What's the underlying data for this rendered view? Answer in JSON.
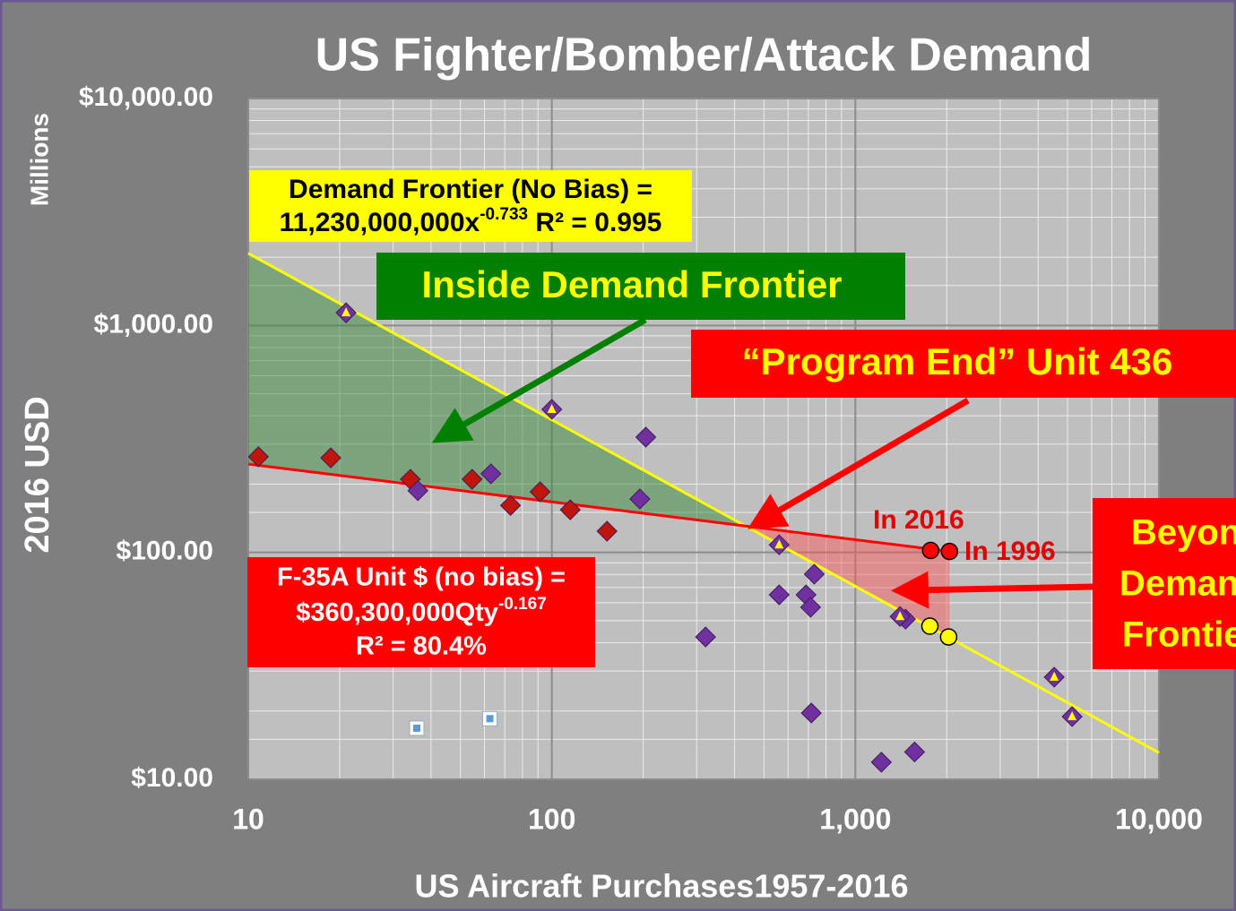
{
  "chart_data": {
    "type": "scatter",
    "title": "US Fighter/Bomber/Attack Demand",
    "y_label": "2016  USD",
    "y_unit": "Millions",
    "x_label": "US Aircraft Purchases1957-2016",
    "log_x": true,
    "log_y": true,
    "grid": true,
    "xlim": [
      10,
      10000
    ],
    "ylim": [
      10,
      10000
    ],
    "xticks": [
      10,
      100,
      {
        "value": 1000,
        "label": "1,000"
      },
      {
        "value": 10000,
        "label": "10,000"
      }
    ],
    "yticks": [
      {
        "value": 10,
        "label": "$10.00"
      },
      {
        "value": 100,
        "label": "$100.00"
      },
      {
        "value": 1000,
        "label": "$1,000.00"
      },
      {
        "value": 10000,
        "label": "$10,000.00"
      }
    ],
    "series": [
      {
        "color": "#c0150a",
        "marker": "diamond",
        "x": [
          10.8,
          18.7,
          34.2,
          54.6,
          73.1,
          91.5,
          115,
          152
        ],
        "values": [
          264,
          261,
          210,
          210,
          161,
          185,
          154,
          124
        ]
      },
      {
        "color": "#7030a0",
        "marker": "diamond",
        "x": [
          36.2,
          63.0,
          195,
          204,
          321,
          561,
          688,
          712,
          732,
          716,
          1218,
          1567,
          1463
        ],
        "values": [
          187,
          222,
          172,
          322,
          42.4,
          65.0,
          65.0,
          57.3,
          80.2,
          19.6,
          11.9,
          13.2,
          50.8
        ]
      },
      {
        "color": "#7030a0",
        "marker": "diamond-triangle",
        "x": [
          21.0,
          100,
          561,
          1403,
          4519,
          5177
        ],
        "values": [
          1138,
          427,
          108,
          52.2,
          28.2,
          18.9
        ]
      },
      {
        "color": "#5b9bd5",
        "marker": "square",
        "x": [
          35.9,
          62.5
        ],
        "values": [
          16.8,
          18.5
        ]
      },
      {
        "color": "#ff0000",
        "marker": "circle",
        "x": [
          1770,
          2042
        ],
        "values": [
          102,
          101
        ]
      },
      {
        "color": "#ffff00",
        "marker": "circle",
        "x": [
          1760,
          2029
        ],
        "values": [
          47.3,
          42.4
        ]
      }
    ],
    "lines": [
      {
        "color": "#ffff00",
        "x": [
          10,
          10000
        ],
        "values": [
          2078,
          13.1
        ]
      },
      {
        "color": "#ff0000",
        "x": [
          10,
          2042
        ],
        "values": [
          245,
          101
        ]
      }
    ],
    "annotations": {
      "frontier": {
        "line1": "Demand Frontier (No Bias) =",
        "line2": "11,230,000,000x",
        "exp": "-0.733",
        "r2": " R² = 0.995"
      },
      "inside": "Inside Demand Frontier",
      "program_end": "“Program End” Unit 436",
      "beyond": [
        "Beyond",
        "Demand",
        "Frontier"
      ],
      "f35": {
        "line1": "F-35A Unit $ (no bias) =",
        "line2": "$360,300,000Qty",
        "exp": "-0.167",
        "line3": "R² = 80.4%"
      },
      "in2016": "In 2016",
      "in1996": "In 1996"
    }
  }
}
